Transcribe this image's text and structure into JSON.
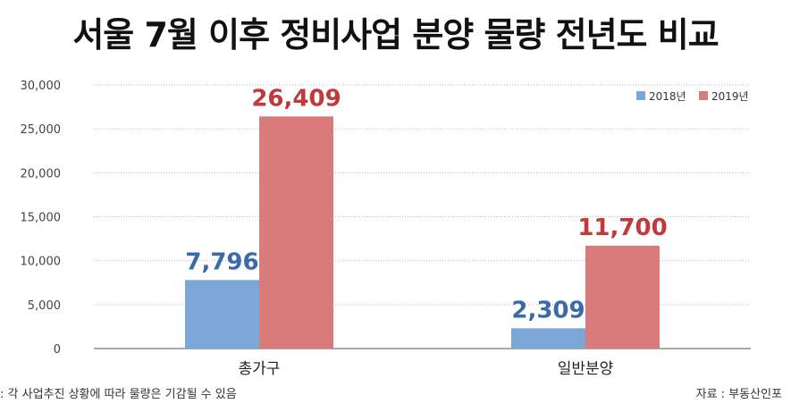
{
  "title": "서울 7월 이후 정비사업 분양 물량 전년도 비교",
  "footnote": ": 각 사업추진 상황에 따라 물량은 기감될 수 있음",
  "source": "자료 : 부동산인포",
  "colors": {
    "series_2018": "#7aa6d8",
    "series_2019": "#d97b7b",
    "label_2018": "#3a6aa8",
    "label_2019": "#c0393b"
  },
  "chart_data": {
    "type": "bar",
    "categories": [
      "총가구",
      "일반분양"
    ],
    "series": [
      {
        "name": "2018년",
        "values": [
          7796,
          2309
        ],
        "labels": [
          "7,796",
          "2,309"
        ]
      },
      {
        "name": "2019년",
        "values": [
          26409,
          11700
        ],
        "labels": [
          "26,409",
          "11,700"
        ]
      }
    ],
    "ylim": [
      0,
      30000
    ],
    "yticks": [
      "0",
      "5,000",
      "10,000",
      "15,000",
      "20,000",
      "25,000",
      "30,000"
    ],
    "grid": true,
    "legend": "top-right"
  }
}
